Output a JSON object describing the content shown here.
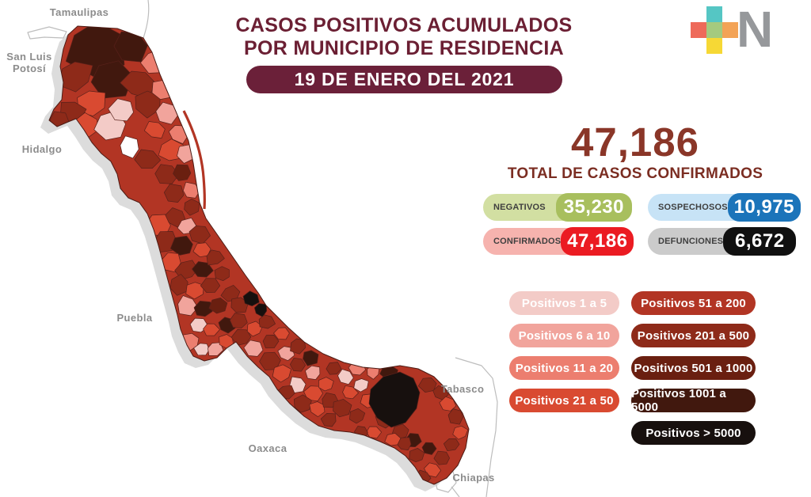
{
  "header": {
    "title_line1": "CASOS POSITIVOS ACUMULADOS",
    "title_line2": "POR MUNICIPIO DE RESIDENCIA",
    "date_banner": "19 DE ENERO DEL 2021"
  },
  "logo": {
    "letter": "N",
    "plus_colors": {
      "top": "#55c6c4",
      "left": "#ee6a5a",
      "center": "#a4ca7f",
      "right": "#f3a356",
      "bottom": "#f6d835"
    }
  },
  "summary": {
    "total_value": "47,186",
    "total_label": "TOTAL DE CASOS CONFIRMADOS",
    "badges": [
      {
        "label": "NEGATIVOS",
        "value": "35,230",
        "bg": "#d2dfa2",
        "value_bg": "#a8bf5e"
      },
      {
        "label": "SOSPECHOSOS",
        "value": "10,975",
        "bg": "#c7e3f6",
        "value_bg": "#1b74ba"
      },
      {
        "label": "CONFIRMADOS",
        "value": "47,186",
        "bg": "#f6b3ae",
        "value_bg": "#eb1b22"
      },
      {
        "label": "DEFUNCIONES",
        "value": "6,672",
        "bg": "#cbcbcb",
        "value_bg": "#101010"
      }
    ]
  },
  "legend": {
    "left": [
      {
        "label": "Positivos 1 a 5",
        "color": "#f3cbc7"
      },
      {
        "label": "Positivos 6 a 10",
        "color": "#f1a49c"
      },
      {
        "label": "Positivos 11 a 20",
        "color": "#ec7e6f"
      },
      {
        "label": "Positivos 21 a 50",
        "color": "#d94a31"
      }
    ],
    "right": [
      {
        "label": "Positivos 51 a 200",
        "color": "#b23524"
      },
      {
        "label": "Positivos 201 a 500",
        "color": "#8e2a19"
      },
      {
        "label": "Positivos 501 a 1000",
        "color": "#6a1f10"
      },
      {
        "label": "Positivos 1001 a 5000",
        "color": "#41180e"
      },
      {
        "label": "Positivos > 5000",
        "color": "#17100e"
      }
    ]
  },
  "map": {
    "region": "Veracruz (casos por municipio)",
    "palette": {
      "c0": "#ffffff",
      "c1": "#f3cbc7",
      "c2": "#f1a49c",
      "c3": "#ec7e6f",
      "c4": "#d94a31",
      "c5": "#b23524",
      "c6": "#8e2a19",
      "c7": "#6a1f10",
      "c8": "#41180e",
      "c9": "#17100e"
    },
    "labels": [
      {
        "text": "Tamaulipas"
      },
      {
        "text": "San Luis"
      },
      {
        "text": "Potosí"
      },
      {
        "text": "Hidalgo"
      },
      {
        "text": "Puebla"
      },
      {
        "text": "Oaxaca"
      },
      {
        "text": "Tabasco"
      },
      {
        "text": "Chiapas"
      }
    ]
  }
}
